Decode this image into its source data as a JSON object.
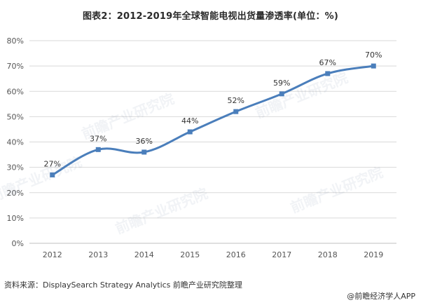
{
  "title": "图表2：2012-2019年全球智能电视出货量渗透率(单位：%)",
  "source": "资料来源：DisplaySearch Strategy Analytics 前瞻产业研究院整理",
  "brand": "@前瞻经济学人APP",
  "watermark": "前瞻产业研究院",
  "colors": {
    "line": "#4a7ebb",
    "grid": "#d9d9d9",
    "axis_text": "#555555",
    "label_text": "#333333"
  },
  "chart_data": {
    "type": "line",
    "title": "图表2：2012-2019年全球智能电视出货量渗透率(单位：%)",
    "categories": [
      "2012",
      "2013",
      "2014",
      "2015",
      "2016",
      "2017",
      "2018",
      "2019"
    ],
    "series": [
      {
        "values": [
          27,
          37,
          36,
          44,
          52,
          59,
          67,
          70
        ],
        "labels": [
          "27%",
          "37%",
          "36%",
          "44%",
          "52%",
          "59%",
          "67%",
          "70%"
        ]
      }
    ],
    "y_ticks": [
      "0%",
      "10%",
      "20%",
      "30%",
      "40%",
      "50%",
      "60%",
      "70%",
      "80%"
    ],
    "ylim": [
      0,
      80
    ],
    "grid": true,
    "legend": "none"
  }
}
